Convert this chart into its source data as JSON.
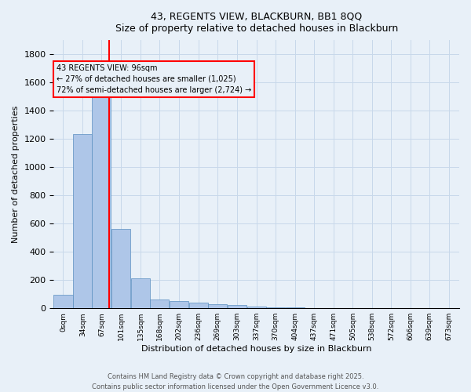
{
  "title_line1": "43, REGENTS VIEW, BLACKBURN, BB1 8QQ",
  "title_line2": "Size of property relative to detached houses in Blackburn",
  "xlabel": "Distribution of detached houses by size in Blackburn",
  "ylabel": "Number of detached properties",
  "bin_labels": [
    "0sqm",
    "34sqm",
    "67sqm",
    "101sqm",
    "135sqm",
    "168sqm",
    "202sqm",
    "236sqm",
    "269sqm",
    "303sqm",
    "337sqm",
    "370sqm",
    "404sqm",
    "437sqm",
    "471sqm",
    "505sqm",
    "538sqm",
    "572sqm",
    "606sqm",
    "639sqm",
    "673sqm"
  ],
  "bin_edges": [
    0,
    34,
    67,
    101,
    135,
    168,
    202,
    236,
    269,
    303,
    337,
    370,
    404,
    437,
    471,
    505,
    538,
    572,
    606,
    639,
    673
  ],
  "bar_values": [
    95,
    1235,
    1510,
    560,
    210,
    65,
    50,
    40,
    30,
    25,
    10,
    5,
    5,
    0,
    0,
    0,
    0,
    0,
    0,
    0
  ],
  "bar_color": "#aec6e8",
  "bar_edgecolor": "#5a8fc0",
  "grid_color": "#c8d8ea",
  "bg_color": "#e8f0f8",
  "property_line_x": 96,
  "property_line_color": "#ff0000",
  "annotation_text": "43 REGENTS VIEW: 96sqm\n← 27% of detached houses are smaller (1,025)\n72% of semi-detached houses are larger (2,724) →",
  "annotation_box_color": "#ff0000",
  "ylim": [
    0,
    1900
  ],
  "yticks": [
    0,
    200,
    400,
    600,
    800,
    1000,
    1200,
    1400,
    1600,
    1800
  ],
  "footer_line1": "Contains HM Land Registry data © Crown copyright and database right 2025.",
  "footer_line2": "Contains public sector information licensed under the Open Government Licence v3.0."
}
